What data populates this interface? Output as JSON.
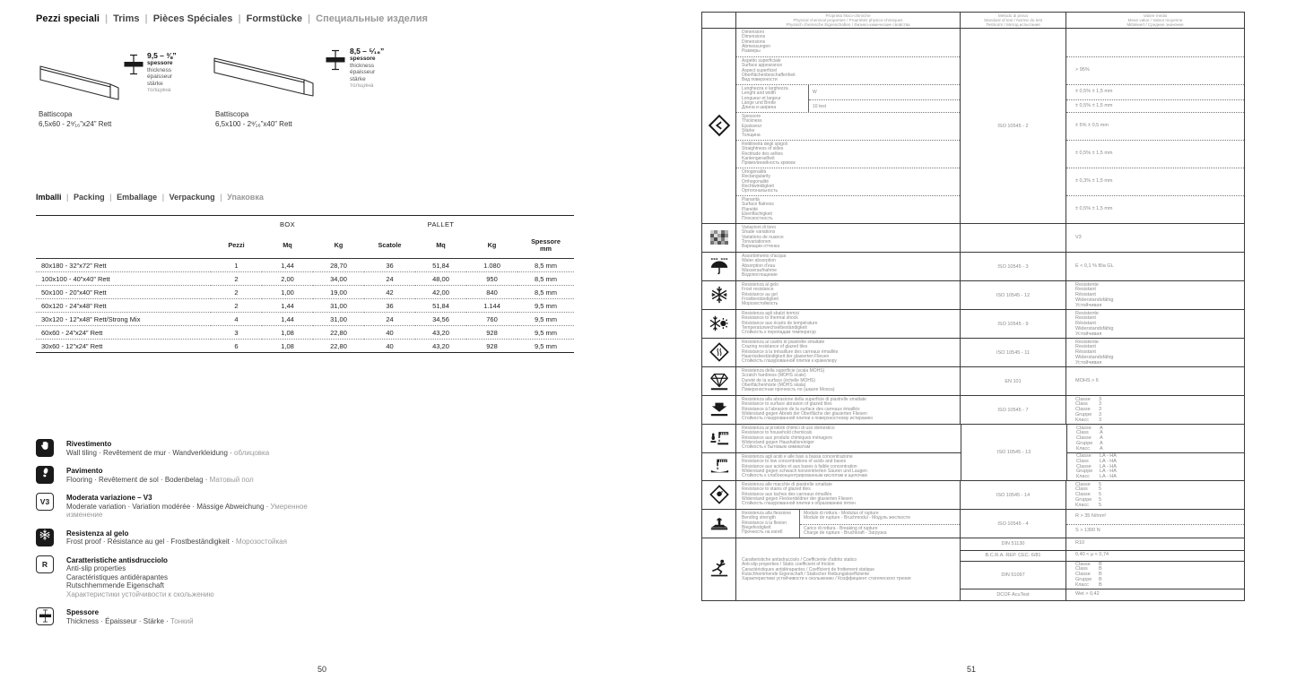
{
  "left_page": {
    "page_number": "50",
    "separator": " | ",
    "title_segments": [
      {
        "text": "Pezzi speciali",
        "style": "primary"
      },
      {
        "text": "Trims",
        "style": "secondary"
      },
      {
        "text": "Pièces Spéciales",
        "style": "secondary"
      },
      {
        "text": "Formstücke",
        "style": "secondary"
      },
      {
        "text": "Специальные изделия",
        "style": "muted"
      }
    ],
    "products": [
      {
        "name": "Battiscopa",
        "size": "6,5x60 - 2⁹⁄₁₆”x24” Rett",
        "thickness_value": "9,5 – ⅜”",
        "thickness_labels": [
          {
            "text": "spessore",
            "style": "bold"
          },
          {
            "text": "thickness",
            "style": "secondary"
          },
          {
            "text": "épaisseur",
            "style": "secondary"
          },
          {
            "text": "stärke",
            "style": "secondary"
          },
          {
            "text": "толщина",
            "style": "muted"
          }
        ]
      },
      {
        "name": "Battiscopa",
        "size": "6,5x100 - 2⁹⁄₁₆”x40” Rett",
        "thickness_value": "8,5 – ⁵⁄₁₆”",
        "thickness_labels": [
          {
            "text": "spessore",
            "style": "bold"
          },
          {
            "text": "thickness",
            "style": "secondary"
          },
          {
            "text": "épaisseur",
            "style": "secondary"
          },
          {
            "text": "stärke",
            "style": "secondary"
          },
          {
            "text": "толщина",
            "style": "muted"
          }
        ]
      }
    ],
    "packing": {
      "title_segments": [
        {
          "text": "Imballi",
          "style": "primary"
        },
        {
          "text": "Packing",
          "style": "secondary"
        },
        {
          "text": "Emballage",
          "style": "secondary"
        },
        {
          "text": "Verpackung",
          "style": "secondary"
        },
        {
          "text": "Упаковка",
          "style": "muted"
        }
      ],
      "group_headers": [
        "BOX",
        "PALLET"
      ],
      "columns": [
        "Pezzi",
        "Mq",
        "Kg",
        "Scatole",
        "Mq",
        "Kg",
        "Spessore|mm"
      ],
      "rows": [
        {
          "label": "80x180 - 32”x72” Rett",
          "cells": [
            "1",
            "1,44",
            "28,70",
            "36",
            "51,84",
            "1.080",
            "8,5 mm"
          ]
        },
        {
          "label": "100x100 - 40”x40” Rett",
          "cells": [
            "2",
            "2,00",
            "34,00",
            "24",
            "48,00",
            "950",
            "8,5 mm"
          ]
        },
        {
          "label": "50x100 - 20”x40” Rett",
          "cells": [
            "2",
            "1,00",
            "19,00",
            "42",
            "42,00",
            "840",
            "8,5 mm"
          ]
        },
        {
          "label": "60x120 - 24”x48” Rett",
          "cells": [
            "2",
            "1,44",
            "31,00",
            "36",
            "51,84",
            "1.144",
            "9,5 mm"
          ]
        },
        {
          "label": "30x120 - 12”x48” Rett/Strong Mix",
          "cells": [
            "4",
            "1,44",
            "31,00",
            "24",
            "34,56",
            "760",
            "9,5 mm"
          ]
        },
        {
          "label": "60x60 - 24”x24” Rett",
          "cells": [
            "3",
            "1,08",
            "22,80",
            "40",
            "43,20",
            "928",
            "9,5 mm"
          ]
        },
        {
          "label": "30x60 - 12”x24” Rett",
          "cells": [
            "6",
            "1,08",
            "22,80",
            "40",
            "43,20",
            "928",
            "9,5 mm"
          ]
        }
      ]
    },
    "legend": [
      {
        "icon": "wall-tiling-icon",
        "kind": "filled",
        "title": "Rivestimento",
        "lines": [
          [
            {
              "text": "Wall tiling · Revêtement de mur · Wandverkleidung · ",
              "style": "secondary"
            },
            {
              "text": "облицовка",
              "style": "muted"
            }
          ]
        ]
      },
      {
        "icon": "flooring-icon",
        "kind": "filled",
        "title": "Pavimento",
        "lines": [
          [
            {
              "text": "Flooring · Revêtement de sol · Bodenbelag · ",
              "style": "secondary"
            },
            {
              "text": "Матовый пол",
              "style": "muted"
            }
          ]
        ]
      },
      {
        "icon": "v3-badge-icon",
        "kind": "badge",
        "badge": "V3",
        "title": "Moderata variazione – V3",
        "lines": [
          [
            {
              "text": "Moderate variation · Variation modérée · Mässige Abweichung · ",
              "style": "secondary"
            },
            {
              "text": "Умеренное",
              "style": "muted"
            }
          ],
          [
            {
              "text": "изменение",
              "style": "muted"
            }
          ]
        ]
      },
      {
        "icon": "frost-proof-icon",
        "kind": "filled",
        "title": "Resistenza al gelo",
        "lines": [
          [
            {
              "text": "Frost proof · Résistance au gel · Frostbeständigkeit · ",
              "style": "secondary"
            },
            {
              "text": "Морозостойкая",
              "style": "muted"
            }
          ]
        ]
      },
      {
        "icon": "r-badge-icon",
        "kind": "badge",
        "badge": "R",
        "title": "Caratteristiche antisdrucciolo",
        "lines": [
          [
            {
              "text": "Anti-slip properties",
              "style": "secondary"
            }
          ],
          [
            {
              "text": "Caractéristiques antidérapantes",
              "style": "secondary"
            }
          ],
          [
            {
              "text": "Rutschhemmende Eigenschaft",
              "style": "secondary"
            }
          ],
          [
            {
              "text": "Характеристики устойчивости к скольжению",
              "style": "muted"
            }
          ]
        ]
      },
      {
        "icon": "thickness-icon",
        "kind": "glyph",
        "title": "Spessore",
        "lines": [
          [
            {
              "text": "Thickness · Épaisseur · Stärke · ",
              "style": "secondary"
            },
            {
              "text": "Тонкий",
              "style": "muted"
            }
          ]
        ]
      }
    ]
  },
  "right_page": {
    "page_number": "51",
    "tech_table": {
      "header": {
        "property": [
          "Proprietà fisico-chimiche",
          "Physical chemical properties / Propriétés physico-chimiques",
          "Physisch chemische Eigenschaften / Физико-химические свойства"
        ],
        "method": [
          "Metodo di prova",
          "Standard of test / Norme du test",
          "Testnorm / Метод испытания"
        ],
        "value": [
          "Valore medio",
          "Mean value / Valeur moyenne",
          "Mittelwert / Среднее значение"
        ]
      },
      "groups": [
        {
          "type": "multi",
          "icon": "dimensions-icon",
          "method": "ISO 10545 - 2",
          "rows": [
            {
              "labels": [
                "Dimensioni",
                "Dimensions",
                "Dimensions",
                "Abmessungen",
                "Размеры"
              ],
              "value": ""
            },
            {
              "labels": [
                "Aspetto superficiale",
                "Surface appearance",
                "Aspect superficiel",
                "Oberflächenbeschaffenheit",
                "Вид поверхности"
              ],
              "value": "> 95%"
            },
            {
              "labels": [
                "Lunghezza e larghezza",
                "Lenght and width",
                "Longueur et largeur",
                "Länge und Breite",
                "Длина и ширина"
              ],
              "subrows": [
                {
                  "label": "W",
                  "value": "± 0,5% ± 1,5 mm"
                },
                {
                  "label": "10 test",
                  "value": "± 0,5% ± 1,5 mm"
                }
              ]
            },
            {
              "labels": [
                "Spessore",
                "Thickness",
                "Epaisseur",
                "Stärke",
                "Толщина"
              ],
              "value": "± 5% ± 0,5 mm"
            },
            {
              "labels": [
                "Rettilineità degli spigoli",
                "Straightness of sides",
                "Rectitude des arêtes",
                "Kantengeradheit",
                "Прямолинейность кромок"
              ],
              "value": "± 0,5% ± 1,5 mm"
            },
            {
              "labels": [
                "Ortogonalità",
                "Rectangularity",
                "Orthogonalité",
                "Rechtwinkligkeit",
                "Ортогональность"
              ],
              "value": "± 0,3% ± 1,5 mm"
            },
            {
              "labels": [
                "Planarità",
                "Surface flatness",
                "Planéité",
                "Ebenflächigkeit",
                "Плоскостность"
              ],
              "value": "± 0,5% ± 1,5 mm"
            }
          ]
        },
        {
          "type": "simple",
          "icon": "shade-variation-icon",
          "method": "",
          "labels": [
            "Variazioni di tono",
            "Shade variations",
            "Variations de nuance",
            "Tonvariationen",
            "Вариации оттенка"
          ],
          "value_lines": [
            "V3"
          ]
        },
        {
          "type": "simple",
          "icon": "water-absorption-icon",
          "method": "ISO 10545 - 3",
          "labels": [
            "Assorbimento d'acqua",
            "Water absorption",
            "Absorption d'eau",
            "Wasseraufnahme",
            "Водопоглощение"
          ],
          "value_lines": [
            "E < 0,1 % BIa GL"
          ]
        },
        {
          "type": "simple",
          "icon": "frost-resistance-icon",
          "method": "ISO 10545 - 12",
          "labels": [
            "Resistenza al gelo",
            "Frost resistance",
            "Résistance au gel",
            "Frostbeständigkeit",
            "Морозостойкость"
          ],
          "value_lines": [
            "Resistente",
            "Resistant",
            "Résistant",
            "Widerstandsfähig",
            "Устойчивая"
          ]
        },
        {
          "type": "simple",
          "icon": "thermal-shock-icon",
          "method": "ISO 10545 - 9",
          "labels": [
            "Resistenza agli sbalzi termici",
            "Resistance to thermal shock",
            "Résistance aux écarts de température",
            "Temperaturwechselbeständigkeit",
            "Стойкость к перепадам температур"
          ],
          "value_lines": [
            "Resistente",
            "Resistant",
            "Résistant",
            "Widerstandsfähig",
            "Устойчивая"
          ]
        },
        {
          "type": "simple",
          "icon": "crazing-resistance-icon",
          "method": "ISO 10545 - 11",
          "labels": [
            "Resistenza al cavillo di piastrelle smaltate",
            "Crazing resistance of glazed tiles",
            "Résistance à la trésaillure des carreaux émaillés",
            "Haarrissbeständigkeit der glasierten Fliesen",
            "Стойкость глазурованной плитки к кракелюру"
          ],
          "value_lines": [
            "Resistente",
            "Resistant",
            "Résistant",
            "Widerstandsfähig",
            "Устойчивая"
          ]
        },
        {
          "type": "simple",
          "icon": "mohs-hardness-icon",
          "method": "EN 101",
          "labels": [
            "Resistenza della superficie (scala MOHS)",
            "Scratch hardness (MOHS scale)",
            "Dureté de la surface (échelle MOHS)",
            "Oberflächenhärte (MOHS skala)",
            "Поверхностная прочность по (шкале Мооса)"
          ],
          "value_lines": [
            "MOHS > 6"
          ]
        },
        {
          "type": "simple",
          "icon": "abrasion-icon",
          "method": "ISO 10545 - 7",
          "labels": [
            "Resistenza alla abrasione della superficie di piastrelle smaltate",
            "Resistance to surface abrasion of glazed tiles",
            "Résistance à l'abrasion de la surface des carreaux émaillés",
            "Widerstand gegen Abrieb der Oberfläche der glasierten Fliesen",
            "Стойкость глазурованной плитки к поверхностному истиранию"
          ],
          "value_pairs": [
            [
              "Classe",
              "3"
            ],
            [
              "Class",
              "3"
            ],
            [
              "Classe",
              "3"
            ],
            [
              "Gruppe",
              "3"
            ],
            [
              "Класс",
              "3"
            ]
          ]
        },
        {
          "type": "pair",
          "method": "ISO 10545 - 13",
          "blocks": [
            {
              "icon": "household-chemicals-icon",
              "labels": [
                "Resistenza ai prodotti chimici di uso domestico",
                "Resistance to household chemicals",
                "Résistance aux produits chimiques ménagers",
                "Widerstand gegen Haushaltsreiniger",
                "Стойкость к бытовым химикатам"
              ],
              "value_pairs": [
                [
                  "Classe",
                  "A"
                ],
                [
                  "Class",
                  "A"
                ],
                [
                  "Classe",
                  "A"
                ],
                [
                  "Gruppe",
                  "A"
                ],
                [
                  "Класс",
                  "A"
                ]
              ]
            },
            {
              "icon": "acids-bases-icon",
              "labels": [
                "Resistenza agli acidi e alle basi a bassa concentrazione",
                "Resistance to low concentrations of acids and bases",
                "Résistance aux acides et aux bases à faible concentration",
                "Widerstand gegen schwach konzentrierten Säuren und Laugen",
                "Стойкость к слабоконцентрированным кислотам и щелочам"
              ],
              "value_pairs": [
                [
                  "Classe",
                  "LA - HA"
                ],
                [
                  "Class",
                  "LA - HA"
                ],
                [
                  "Classe",
                  "LA - HA"
                ],
                [
                  "Gruppe",
                  "LA - HA"
                ],
                [
                  "Класс",
                  "LA - HA"
                ]
              ]
            }
          ]
        },
        {
          "type": "simple",
          "icon": "stain-resistance-icon",
          "method": "ISO 10545 - 14",
          "labels": [
            "Resistenza alle macchie di piastrelle smaltate",
            "Resistance to stains of glazed tiles",
            "Résistance aux taches des carreaux émaillés",
            "Widerstand gegen Fleckenbildner der glasierten Fliesen",
            "Стойкость глазурованной плитки к образованию пятен"
          ],
          "value_pairs": [
            [
              "Classe",
              "5"
            ],
            [
              "Class",
              "5"
            ],
            [
              "Classe",
              "5"
            ],
            [
              "Gruppe",
              "5"
            ],
            [
              "Класс",
              "5"
            ]
          ]
        },
        {
          "type": "split",
          "icon": "bending-strength-icon",
          "method": "ISO 10545 - 4",
          "labels": [
            "Resistenza alla flessione",
            "Bending strength",
            "Résistance à la flexion",
            "Biegefestigkeit",
            "Прочность на изгиб"
          ],
          "subrows": [
            {
              "label_lines": [
                "Modulo di rottura - Modulus of rupture",
                "Module de rupture - Bruchmodul - Модуль жесткости"
              ],
              "value": "R > 35 N/mm²"
            },
            {
              "label_lines": [
                "Carico di rottura - Breaking of rupture",
                "Charge de rupture - Bruchkraft - Загрузка"
              ],
              "value": "S > 1300 N"
            }
          ]
        },
        {
          "type": "tests",
          "icon": "anti-slip-icon",
          "labels": [
            "Caratteristiche antisdrucciolo / Coefficiente d'attrito statico",
            "Anti-slip properties / Static coefficient of friction",
            "Caractéristiques antidérapantes / Coefficient de frottement statique",
            "Rutschhemmende Eigenschaft / Statischer Reibungskoeffiziente",
            "Характеристики устойчивости к скольжению / Коэффициент статического трения"
          ],
          "tests": [
            {
              "method": "DIN 51130",
              "value_lines": [
                "R10"
              ]
            },
            {
              "method": "B.C.R.A. REP. CEC. 6/81",
              "value_lines": [
                "0,40 < µ < 0,74"
              ]
            },
            {
              "method": "DIN 51097",
              "value_pairs": [
                [
                  "Classe",
                  "B"
                ],
                [
                  "Class",
                  "B"
                ],
                [
                  "Classe",
                  "B"
                ],
                [
                  "Gruppe",
                  "B"
                ],
                [
                  "Класс",
                  "B"
                ]
              ]
            },
            {
              "method": "DCOF AcuTest",
              "value_lines": [
                "Wet > 0,42"
              ]
            }
          ]
        }
      ]
    }
  }
}
